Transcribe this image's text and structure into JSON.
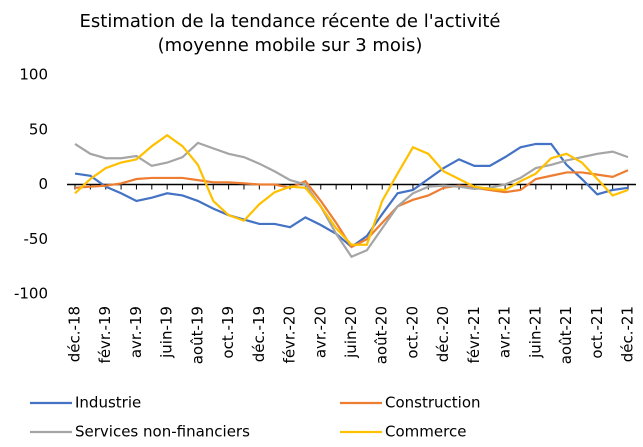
{
  "chart_data": {
    "type": "line",
    "title": "Estimation de la tendance récente de l'activité",
    "subtitle": "(moyenne mobile sur 3 mois)",
    "categories": [
      "déc.-18",
      null,
      "févr.-19",
      null,
      "avr.-19",
      null,
      "juin-19",
      null,
      "août-19",
      null,
      "oct.-19",
      null,
      "déc.-19",
      null,
      "févr.-20",
      null,
      "avr.-20",
      null,
      "juin-20",
      null,
      "août-20",
      null,
      "oct.-20",
      null,
      "déc.-20",
      null,
      "févr.-21",
      null,
      "avr.-21",
      null,
      "juin-21",
      null,
      "août-21",
      null,
      "oct.-21",
      null,
      "déc.-21"
    ],
    "ylim": [
      -100,
      100
    ],
    "yticks": [
      -100,
      -50,
      0,
      50,
      100
    ],
    "grid": false,
    "legend": "bottom",
    "series": [
      {
        "name": "Industrie",
        "color": "#4472c4",
        "values": [
          10,
          8,
          -2,
          -8,
          -15,
          -12,
          -8,
          -10,
          -15,
          -22,
          -28,
          -32,
          -36,
          -36,
          -39,
          -30,
          -37,
          -45,
          -57,
          -47,
          -27,
          -8,
          -5,
          5,
          15,
          23,
          17,
          17,
          25,
          34,
          37,
          37,
          18,
          5,
          -9,
          -5,
          -3
        ]
      },
      {
        "name": "Construction",
        "color": "#ed7d31",
        "values": [
          -3,
          -2,
          -1,
          1,
          5,
          6,
          6,
          6,
          4,
          2,
          2,
          1,
          0,
          0,
          -3,
          3,
          -15,
          -35,
          -57,
          -50,
          -35,
          -20,
          -14,
          -10,
          -3,
          -1,
          -3,
          -5,
          -7,
          -5,
          5,
          8,
          11,
          11,
          9,
          7,
          13
        ]
      },
      {
        "name": "Services non-financiers",
        "color": "#a5a5a5",
        "values": [
          37,
          28,
          24,
          24,
          26,
          17,
          20,
          25,
          38,
          33,
          28,
          25,
          19,
          12,
          4,
          0,
          -20,
          -45,
          -66,
          -60,
          -40,
          -20,
          -8,
          -2,
          -1,
          -2,
          -4,
          -3,
          0,
          6,
          15,
          18,
          22,
          25,
          28,
          30,
          25
        ]
      },
      {
        "name": "Commerce",
        "color": "#ffc000",
        "values": [
          -8,
          5,
          15,
          20,
          23,
          35,
          45,
          35,
          18,
          -15,
          -28,
          -33,
          -18,
          -7,
          -2,
          -3,
          -20,
          -40,
          -55,
          -55,
          -15,
          10,
          34,
          28,
          12,
          5,
          -2,
          -4,
          -5,
          3,
          10,
          24,
          28,
          20,
          5,
          -10,
          -5
        ]
      }
    ]
  }
}
